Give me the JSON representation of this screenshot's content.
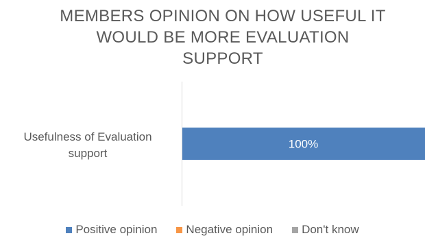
{
  "chart_data": {
    "type": "bar",
    "orientation": "horizontal",
    "stacked": true,
    "title_lines": [
      "MEMBERS OPINION ON HOW USEFUL IT",
      "WOULD BE MORE EVALUATION",
      "SUPPORT"
    ],
    "categories": [
      [
        "Usefulness of Evaluation",
        "support"
      ]
    ],
    "series": [
      {
        "name": "Positive opinion",
        "values": [
          100
        ],
        "color": "#4F81BD",
        "label": "100%"
      },
      {
        "name": "Negative opinion",
        "values": [
          0
        ],
        "color": "#F79646",
        "label": ""
      },
      {
        "name": "Don't know",
        "values": [
          0
        ],
        "color": "#A5A5A5",
        "label": ""
      }
    ],
    "xlim": [
      0,
      100
    ],
    "grid": false,
    "legend_position": "bottom"
  }
}
